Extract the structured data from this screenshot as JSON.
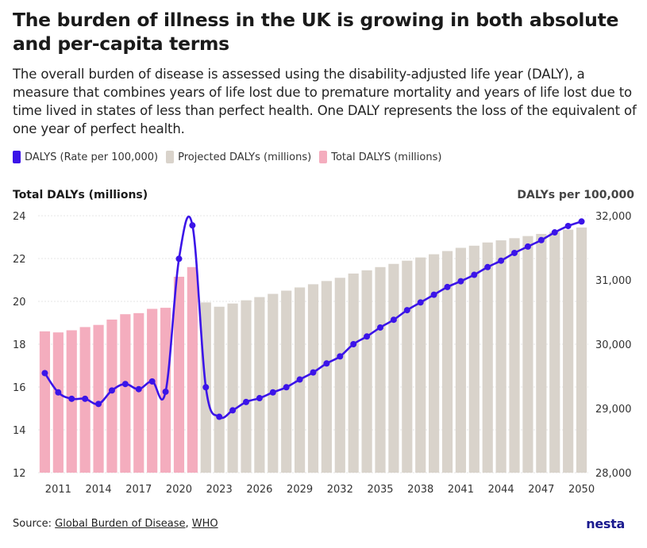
{
  "header": {
    "title": "The burden of illness in the UK is growing in both absolute and per-capita terms",
    "subtitle": "The overall burden of disease is assessed using the disability-adjusted life year (DALY), a measure that combines years of life lost due to premature mortality and years of life lost due to time lived in states of less than perfect health. One DALY represents the loss of the equivalent of one year of perfect health."
  },
  "legend": [
    {
      "label": "DALYS (Rate per 100,000)",
      "color": "#3b14e8"
    },
    {
      "label": "Projected DALYs (millions)",
      "color": "#d9d3cb"
    },
    {
      "label": "Total DALYS (millions)",
      "color": "#f4adbe"
    }
  ],
  "footer": {
    "source_prefix": "Source: ",
    "source_link_1": "Global Burden of Disease",
    "source_sep": ", ",
    "source_link_2": "WHO",
    "logo": "nesta"
  },
  "chart_data": {
    "type": "bar+line",
    "left_axis_title": "Total DALYs (millions)",
    "right_axis_title": "DALYs per 100,000",
    "left_ylim": [
      12,
      24
    ],
    "left_ticks": [
      "12",
      "14",
      "16",
      "18",
      "20",
      "22",
      "24"
    ],
    "right_ylim": [
      28000,
      32000
    ],
    "right_ticks": [
      "28,000",
      "29,000",
      "30,000",
      "31,000",
      "32,000"
    ],
    "x_ticks": [
      "2011",
      "2014",
      "2017",
      "2020",
      "2023",
      "2026",
      "2029",
      "2032",
      "2035",
      "2038",
      "2041",
      "2044",
      "2047",
      "2050"
    ],
    "years": [
      2010,
      2011,
      2012,
      2013,
      2014,
      2015,
      2016,
      2017,
      2018,
      2019,
      2020,
      2021,
      2022,
      2023,
      2024,
      2025,
      2026,
      2027,
      2028,
      2029,
      2030,
      2031,
      2032,
      2033,
      2034,
      2035,
      2036,
      2037,
      2038,
      2039,
      2040,
      2041,
      2042,
      2043,
      2044,
      2045,
      2046,
      2047,
      2048,
      2049,
      2050
    ],
    "total_dalys_millions": {
      "name": "Total DALYS (millions)",
      "years": [
        2010,
        2011,
        2012,
        2013,
        2014,
        2015,
        2016,
        2017,
        2018,
        2019,
        2020,
        2021
      ],
      "values": [
        18.6,
        18.55,
        18.65,
        18.8,
        18.9,
        19.15,
        19.4,
        19.45,
        19.65,
        19.7,
        21.15,
        21.6
      ]
    },
    "projected_dalys_millions": {
      "name": "Projected DALYs (millions)",
      "years": [
        2022,
        2023,
        2024,
        2025,
        2026,
        2027,
        2028,
        2029,
        2030,
        2031,
        2032,
        2033,
        2034,
        2035,
        2036,
        2037,
        2038,
        2039,
        2040,
        2041,
        2042,
        2043,
        2044,
        2045,
        2046,
        2047,
        2048,
        2049,
        2050
      ],
      "values": [
        19.95,
        19.75,
        19.9,
        20.05,
        20.2,
        20.35,
        20.5,
        20.65,
        20.8,
        20.95,
        21.1,
        21.3,
        21.45,
        21.6,
        21.75,
        21.9,
        22.05,
        22.2,
        22.35,
        22.5,
        22.6,
        22.75,
        22.85,
        22.95,
        23.05,
        23.15,
        23.25,
        23.35,
        23.45
      ]
    },
    "dalys_rate_per_100000": {
      "name": "DALYS (Rate per 100,000)",
      "years": [
        2010,
        2011,
        2012,
        2013,
        2014,
        2015,
        2016,
        2017,
        2018,
        2019,
        2020,
        2021,
        2022,
        2023,
        2024,
        2025,
        2026,
        2027,
        2028,
        2029,
        2030,
        2031,
        2032,
        2033,
        2034,
        2035,
        2036,
        2037,
        2038,
        2039,
        2040,
        2041,
        2042,
        2043,
        2044,
        2045,
        2046,
        2047,
        2048,
        2049,
        2050
      ],
      "values": [
        29.55,
        29.25,
        29.15,
        29.15,
        29.07,
        29.28,
        29.38,
        29.3,
        29.42,
        29.26,
        31.33,
        31.85,
        29.33,
        28.87,
        28.97,
        29.1,
        29.16,
        29.25,
        29.33,
        29.45,
        29.56,
        29.7,
        29.81,
        30.0,
        30.12,
        30.26,
        30.38,
        30.53,
        30.65,
        30.77,
        30.89,
        30.98,
        31.08,
        31.2,
        31.3,
        31.42,
        31.52,
        31.62,
        31.74,
        31.84,
        31.91
      ]
    },
    "rate_values_unit": "thousands (DALYs per 100,000)"
  }
}
